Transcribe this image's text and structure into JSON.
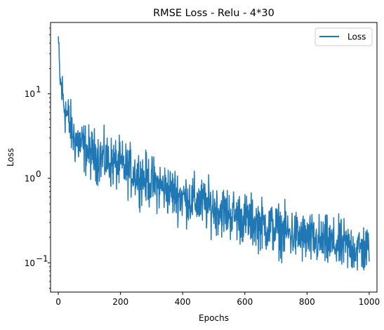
{
  "chart_data": {
    "type": "line",
    "title": "RMSE Loss - Relu - 4*30",
    "xlabel": "Epochs",
    "ylabel": "Loss",
    "yscale": "log",
    "xlim": [
      -25,
      1025
    ],
    "ylim": [
      0.045,
      70
    ],
    "x_ticks": [
      0,
      200,
      400,
      600,
      800,
      1000
    ],
    "x_tick_labels": [
      "0",
      "200",
      "400",
      "600",
      "800",
      "1000"
    ],
    "y_ticks": [
      0.1,
      1,
      10
    ],
    "y_tick_labels": [
      "10",
      "10",
      "10"
    ],
    "y_tick_exponents": [
      "−1",
      "0",
      "1"
    ],
    "grid": false,
    "legend_position": "top-right",
    "series": [
      {
        "name": "Loss",
        "color": "#1f77b4",
        "x_start": 0,
        "x_end": 1000,
        "points": 1000,
        "trend": [
          [
            0,
            48
          ],
          [
            5,
            15
          ],
          [
            20,
            7
          ],
          [
            50,
            3.0
          ],
          [
            100,
            2.0
          ],
          [
            200,
            1.4
          ],
          [
            300,
            0.9
          ],
          [
            400,
            0.6
          ],
          [
            500,
            0.45
          ],
          [
            600,
            0.33
          ],
          [
            700,
            0.25
          ],
          [
            800,
            0.19
          ],
          [
            900,
            0.16
          ],
          [
            1000,
            0.14
          ]
        ],
        "noise_log10_amplitude": 0.45,
        "min_value": 0.063,
        "max_value": 48
      }
    ]
  }
}
